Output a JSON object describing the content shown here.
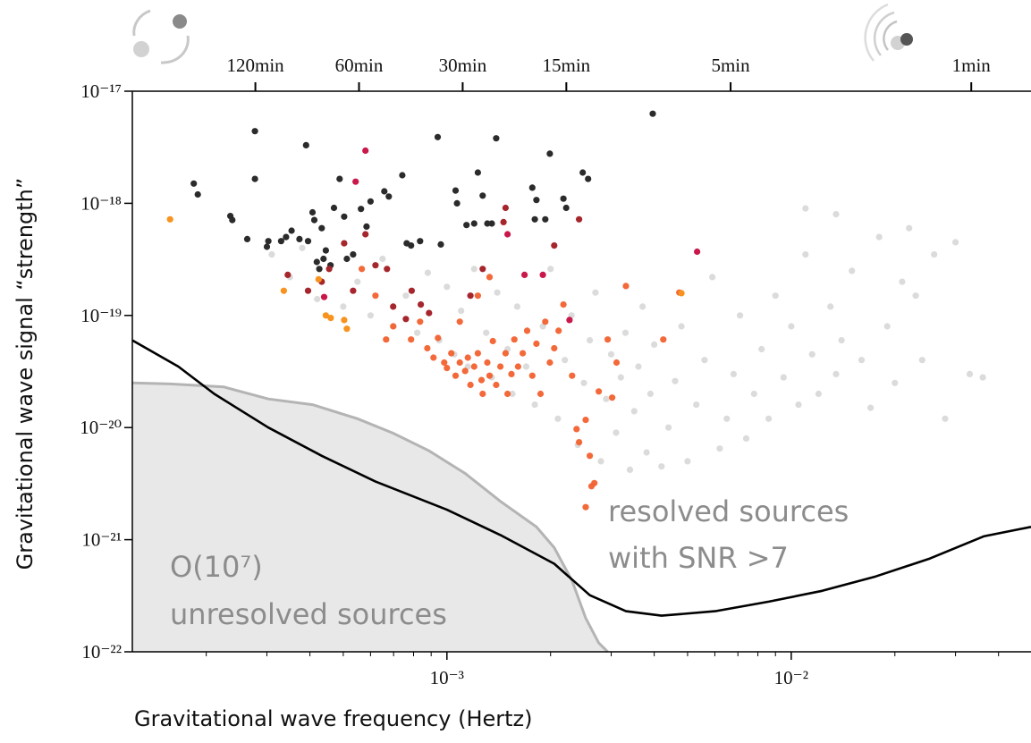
{
  "chart_data": {
    "type": "scatter",
    "x_label": "Gravitational wave frequency (Hertz)",
    "y_label": "Gravitational wave signal “strength”",
    "annotations": [
      "O(10⁷)",
      "unresolved sources",
      "resolved sources",
      "with SNR >7"
    ],
    "xscale": "log",
    "yscale": "log",
    "xlim": [
      0.000122,
      0.0497
    ],
    "ylim": [
      1e-22,
      1e-17
    ],
    "xticks": [
      {
        "value": 0.001,
        "label": "10⁻³"
      },
      {
        "value": 0.01,
        "label": "10⁻²"
      }
    ],
    "xminorticks": [
      0.0002,
      0.0003,
      0.0004,
      0.0005,
      0.0006,
      0.0007,
      0.0008,
      0.0009,
      0.002,
      0.003,
      0.004,
      0.005,
      0.006,
      0.007,
      0.008,
      0.009,
      0.02,
      0.03,
      0.04
    ],
    "yticks": [
      {
        "value": 1e-22,
        "label": "10⁻²²"
      },
      {
        "value": 1e-21,
        "label": "10⁻²¹"
      },
      {
        "value": 1e-20,
        "label": "10⁻²⁰"
      },
      {
        "value": 1e-19,
        "label": "10⁻¹⁹"
      },
      {
        "value": 1e-18,
        "label": "10⁻¹⁸"
      },
      {
        "value": 1e-17,
        "label": "10⁻¹⁷"
      }
    ],
    "x2ticks": [
      {
        "value": 120,
        "label": "120min"
      },
      {
        "value": 60,
        "label": "60min"
      },
      {
        "value": 30,
        "label": "30min"
      },
      {
        "value": 15,
        "label": "15min"
      },
      {
        "value": 5,
        "label": "5min"
      },
      {
        "value": 1,
        "label": "1min"
      }
    ],
    "series": [
      {
        "type": "area",
        "color": "#e8e8e8",
        "line_color": "#b4b4b4",
        "x": [
          0.000122,
          0.000157,
          0.000225,
          0.000303,
          0.000407,
          0.00055,
          0.000698,
          0.000887,
          0.00113,
          0.00143,
          0.00182,
          0.00205,
          0.00231,
          0.00253,
          0.00276,
          0.00293
        ],
        "values": [
          2.5e-20,
          2.45e-20,
          2.3e-20,
          1.8e-20,
          1.6e-20,
          1.2e-20,
          8.9e-21,
          6.2e-21,
          3.9e-21,
          2.2e-21,
          1.3e-21,
          8.5e-22,
          4.3e-22,
          2e-22,
          1.2e-22,
          1e-22
        ]
      },
      {
        "type": "line",
        "color": "#000000",
        "x": [
          0.000122,
          0.000166,
          0.000211,
          0.000303,
          0.000433,
          0.00062,
          0.001,
          0.00143,
          0.00205,
          0.0026,
          0.00331,
          0.0042,
          0.00601,
          0.00861,
          0.0123,
          0.0176,
          0.0253,
          0.0362,
          0.0497
        ],
        "values": [
          6e-20,
          3.5e-20,
          2e-20,
          1e-20,
          5.6e-21,
          3.3e-21,
          1.85e-21,
          1.1e-21,
          6.1e-22,
          3.2e-22,
          2.3e-22,
          2.1e-22,
          2.3e-22,
          2.8e-22,
          3.5e-22,
          4.7e-22,
          6.8e-22,
          1.07e-21,
          1.3e-21
        ]
      },
      {
        "type": "scatter",
        "color": "#bdbdbd",
        "opacity": 0.55,
        "x": [
          0.00031,
          0.00035,
          0.00038,
          0.00042,
          0.00046,
          0.0005,
          0.00055,
          0.0006,
          0.00065,
          0.0007,
          0.00076,
          0.00082,
          0.00088,
          0.00095,
          0.001,
          0.00105,
          0.0011,
          0.00115,
          0.0012,
          0.0013,
          0.00135,
          0.0014,
          0.0015,
          0.00155,
          0.0016,
          0.0017,
          0.0018,
          0.0019,
          0.002,
          0.0021,
          0.0022,
          0.0023,
          0.0024,
          0.0025,
          0.0026,
          0.0027,
          0.0028,
          0.0029,
          0.003,
          0.0031,
          0.0032,
          0.0033,
          0.0034,
          0.0035,
          0.0036,
          0.0037,
          0.0038,
          0.0039,
          0.004,
          0.0042,
          0.0044,
          0.0046,
          0.0048,
          0.005,
          0.0053,
          0.0056,
          0.0059,
          0.0062,
          0.0065,
          0.0068,
          0.0071,
          0.0074,
          0.0078,
          0.0082,
          0.0086,
          0.009,
          0.0095,
          0.01,
          0.0105,
          0.011,
          0.0115,
          0.012,
          0.013,
          0.0135,
          0.014,
          0.015,
          0.016,
          0.017,
          0.018,
          0.019,
          0.02,
          0.021,
          0.022,
          0.024,
          0.026,
          0.028,
          0.03,
          0.033,
          0.036,
          0.0135,
          0.011,
          0.023
        ],
        "values": [
          3.5e-19,
          2.2e-19,
          4e-19,
          1.4e-19,
          2.8e-19,
          1.2e-19,
          2e-19,
          1e-19,
          3.2e-19,
          8e-20,
          1.5e-19,
          7e-20,
          2.4e-19,
          6e-20,
          1.8e-19,
          4.5e-20,
          1.1e-19,
          3.5e-20,
          2.6e-19,
          7e-20,
          2.8e-20,
          1.6e-19,
          5e-20,
          2e-20,
          1.2e-19,
          3.5e-20,
          1.6e-20,
          8e-20,
          2.6e-19,
          1.2e-20,
          4e-20,
          1e-19,
          7e-21,
          2.5e-20,
          6e-20,
          1.6e-19,
          5e-21,
          1.8e-20,
          4.5e-20,
          9e-21,
          2.8e-20,
          7e-20,
          4.2e-21,
          1.4e-20,
          3.5e-20,
          1.2e-19,
          6e-21,
          2e-20,
          5.5e-20,
          4.5e-21,
          1e-20,
          2.6e-20,
          8e-20,
          5e-21,
          1.6e-20,
          4e-20,
          2.2e-19,
          6.5e-21,
          1.2e-20,
          3e-20,
          1e-19,
          8e-21,
          2e-20,
          5e-20,
          1.2e-20,
          1.5e-19,
          2.8e-20,
          8e-20,
          1.6e-20,
          3.5e-19,
          4.5e-20,
          2e-20,
          1.2e-19,
          3e-20,
          6e-20,
          2.5e-19,
          4e-20,
          1.5e-20,
          5e-19,
          8e-20,
          2.5e-20,
          2e-19,
          6e-19,
          4e-20,
          3.5e-19,
          1.2e-20,
          4.5e-19,
          3e-20,
          2.8e-20,
          8e-19,
          9e-19,
          1.5e-19
        ]
      },
      {
        "type": "scatter",
        "color": "#2b2b2b",
        "opacity": 1,
        "x": [
          0.000184,
          0.000189,
          0.000235,
          0.000238,
          0.000263,
          0.000277,
          0.000277,
          0.0003,
          0.000303,
          0.00033,
          0.000341,
          0.000354,
          0.000373,
          0.00039,
          0.000395,
          0.000407,
          0.000412,
          0.000419,
          0.000426,
          0.000433,
          0.000438,
          0.000445,
          0.000459,
          0.00047,
          0.000488,
          0.000503,
          0.000512,
          0.000534,
          0.000563,
          0.000584,
          0.0006,
          0.000658,
          0.000678,
          0.000742,
          0.000764,
          0.000787,
          0.000836,
          0.00094,
          0.00096,
          0.00106,
          0.00107,
          0.00114,
          0.0012,
          0.00123,
          0.00127,
          0.00131,
          0.00135,
          0.00139,
          0.00177,
          0.00182,
          0.0018,
          0.00193,
          0.00199,
          0.00218,
          0.00222,
          0.00248,
          0.00257,
          0.00396
        ],
        "values": [
          1.5e-18,
          1.2e-18,
          7.7e-19,
          7.1e-19,
          4.8e-19,
          4.4e-18,
          1.65e-18,
          4.1e-19,
          4.6e-19,
          4.6e-19,
          5e-19,
          5.7e-19,
          4.8e-19,
          3.3e-18,
          4.6e-19,
          8.3e-19,
          7.1e-19,
          3e-19,
          2.6e-19,
          6e-19,
          3.2e-19,
          3.8e-19,
          2.8e-19,
          9.1e-19,
          1.65e-18,
          7.6e-19,
          3.2e-19,
          3.5e-19,
          8.9e-19,
          6.2e-19,
          1.04e-18,
          1.28e-18,
          1.15e-18,
          1.78e-18,
          4.4e-19,
          4.2e-19,
          4.6e-19,
          3.9e-18,
          4.3e-19,
          1.3e-18,
          1e-18,
          6.4e-19,
          6.6e-19,
          1.88e-18,
          1.17e-18,
          6.6e-19,
          6.6e-19,
          3.8e-18,
          1.38e-18,
          1.07e-18,
          7.2e-19,
          7.2e-19,
          2.77e-18,
          1.1e-18,
          9.1e-19,
          1.88e-18,
          1.65e-18,
          6.3e-18
        ]
      },
      {
        "type": "scatter",
        "color": "#c9184a",
        "opacity": 1,
        "x": [
          0.00058,
          0.000543,
          0.0015,
          0.00168,
          0.0019,
          0.00533,
          0.00227,
          0.00044
        ],
        "values": [
          2.95e-18,
          1.56e-18,
          5.3e-19,
          2.3e-19,
          2.3e-19,
          3.7e-19,
          9.1e-20,
          1.46e-19
        ]
      },
      {
        "type": "scatter",
        "color": "#a5262c",
        "opacity": 1,
        "x": [
          0.000345,
          0.000395,
          0.000433,
          0.000455,
          0.000503,
          0.000534,
          0.00058,
          0.00062,
          0.00067,
          0.000698,
          0.00076,
          0.00079,
          0.00084,
          0.000887,
          0.00127,
          0.00148,
          0.00146,
          0.00205,
          0.00242,
          0.00117
        ],
        "values": [
          2.3e-19,
          1.66e-19,
          2e-19,
          2.6e-19,
          4.4e-19,
          1.66e-19,
          5.3e-19,
          2.8e-19,
          2.6e-19,
          1.2e-19,
          9.3e-20,
          1.66e-19,
          1.25e-19,
          1.05e-19,
          2.6e-19,
          9.1e-19,
          6.8e-19,
          4.2e-19,
          7.2e-19,
          1.5e-19
        ]
      },
      {
        "type": "scatter",
        "color": "#f2612f",
        "opacity": 0.95,
        "x": [
          0.000566,
          0.00062,
          0.000666,
          0.000698,
          0.000787,
          0.000836,
          0.000877,
          0.000914,
          0.000942,
          0.000982,
          0.001,
          0.00103,
          0.00106,
          0.00109,
          0.00113,
          0.00115,
          0.00117,
          0.0012,
          0.00123,
          0.00126,
          0.00127,
          0.00131,
          0.00133,
          0.00136,
          0.00139,
          0.00143,
          0.00148,
          0.0015,
          0.00154,
          0.00157,
          0.00161,
          0.00166,
          0.00171,
          0.00177,
          0.00182,
          0.00187,
          0.00193,
          0.00199,
          0.00205,
          0.00211,
          0.00218,
          0.00231,
          0.00238,
          0.00242,
          0.00253,
          0.0026,
          0.00263,
          0.00276,
          0.00293,
          0.00302,
          0.00311,
          0.00331,
          0.00425,
          0.00473,
          0.00253,
          0.00268,
          0.00123,
          0.00133,
          0.00109
        ],
        "values": [
          2.6e-19,
          1.5e-19,
          6.1e-20,
          8e-20,
          6.1e-20,
          8.8e-20,
          5.1e-20,
          4.2e-20,
          6.3e-20,
          3.8e-20,
          3.4e-20,
          4.6e-20,
          2.9e-20,
          3.8e-20,
          3.2e-20,
          4.2e-20,
          2.4e-20,
          3.5e-20,
          4.6e-20,
          2.65e-20,
          2e-20,
          3.8e-20,
          2.9e-20,
          5.9e-20,
          2.4e-20,
          3.5e-20,
          4.6e-20,
          2e-20,
          3e-20,
          6.1e-20,
          3.5e-20,
          4.6e-20,
          7.3e-20,
          2.9e-20,
          5.6e-20,
          2e-20,
          8.8e-20,
          3.8e-20,
          5.1e-20,
          7.3e-20,
          1.25e-19,
          2.9e-20,
          9.7e-21,
          7.4e-21,
          1.17e-20,
          5.6e-21,
          3e-21,
          2.1e-20,
          6.1e-20,
          1.85e-20,
          3.8e-20,
          1.83e-19,
          6.1e-20,
          1.6e-19,
          1.95e-21,
          3.2e-21,
          1.5e-19,
          2.2e-19,
          8.8e-20
        ]
      },
      {
        "type": "scatter",
        "color": "#f7931e",
        "opacity": 1,
        "x": [
          0.000157,
          0.000336,
          0.000445,
          0.00046,
          0.000503,
          0.000512,
          0.000424,
          0.0048
        ],
        "values": [
          7.2e-19,
          1.66e-19,
          1e-19,
          9.5e-20,
          9.1e-20,
          7.6e-20,
          2.1e-19,
          1.58e-19
        ]
      }
    ]
  }
}
